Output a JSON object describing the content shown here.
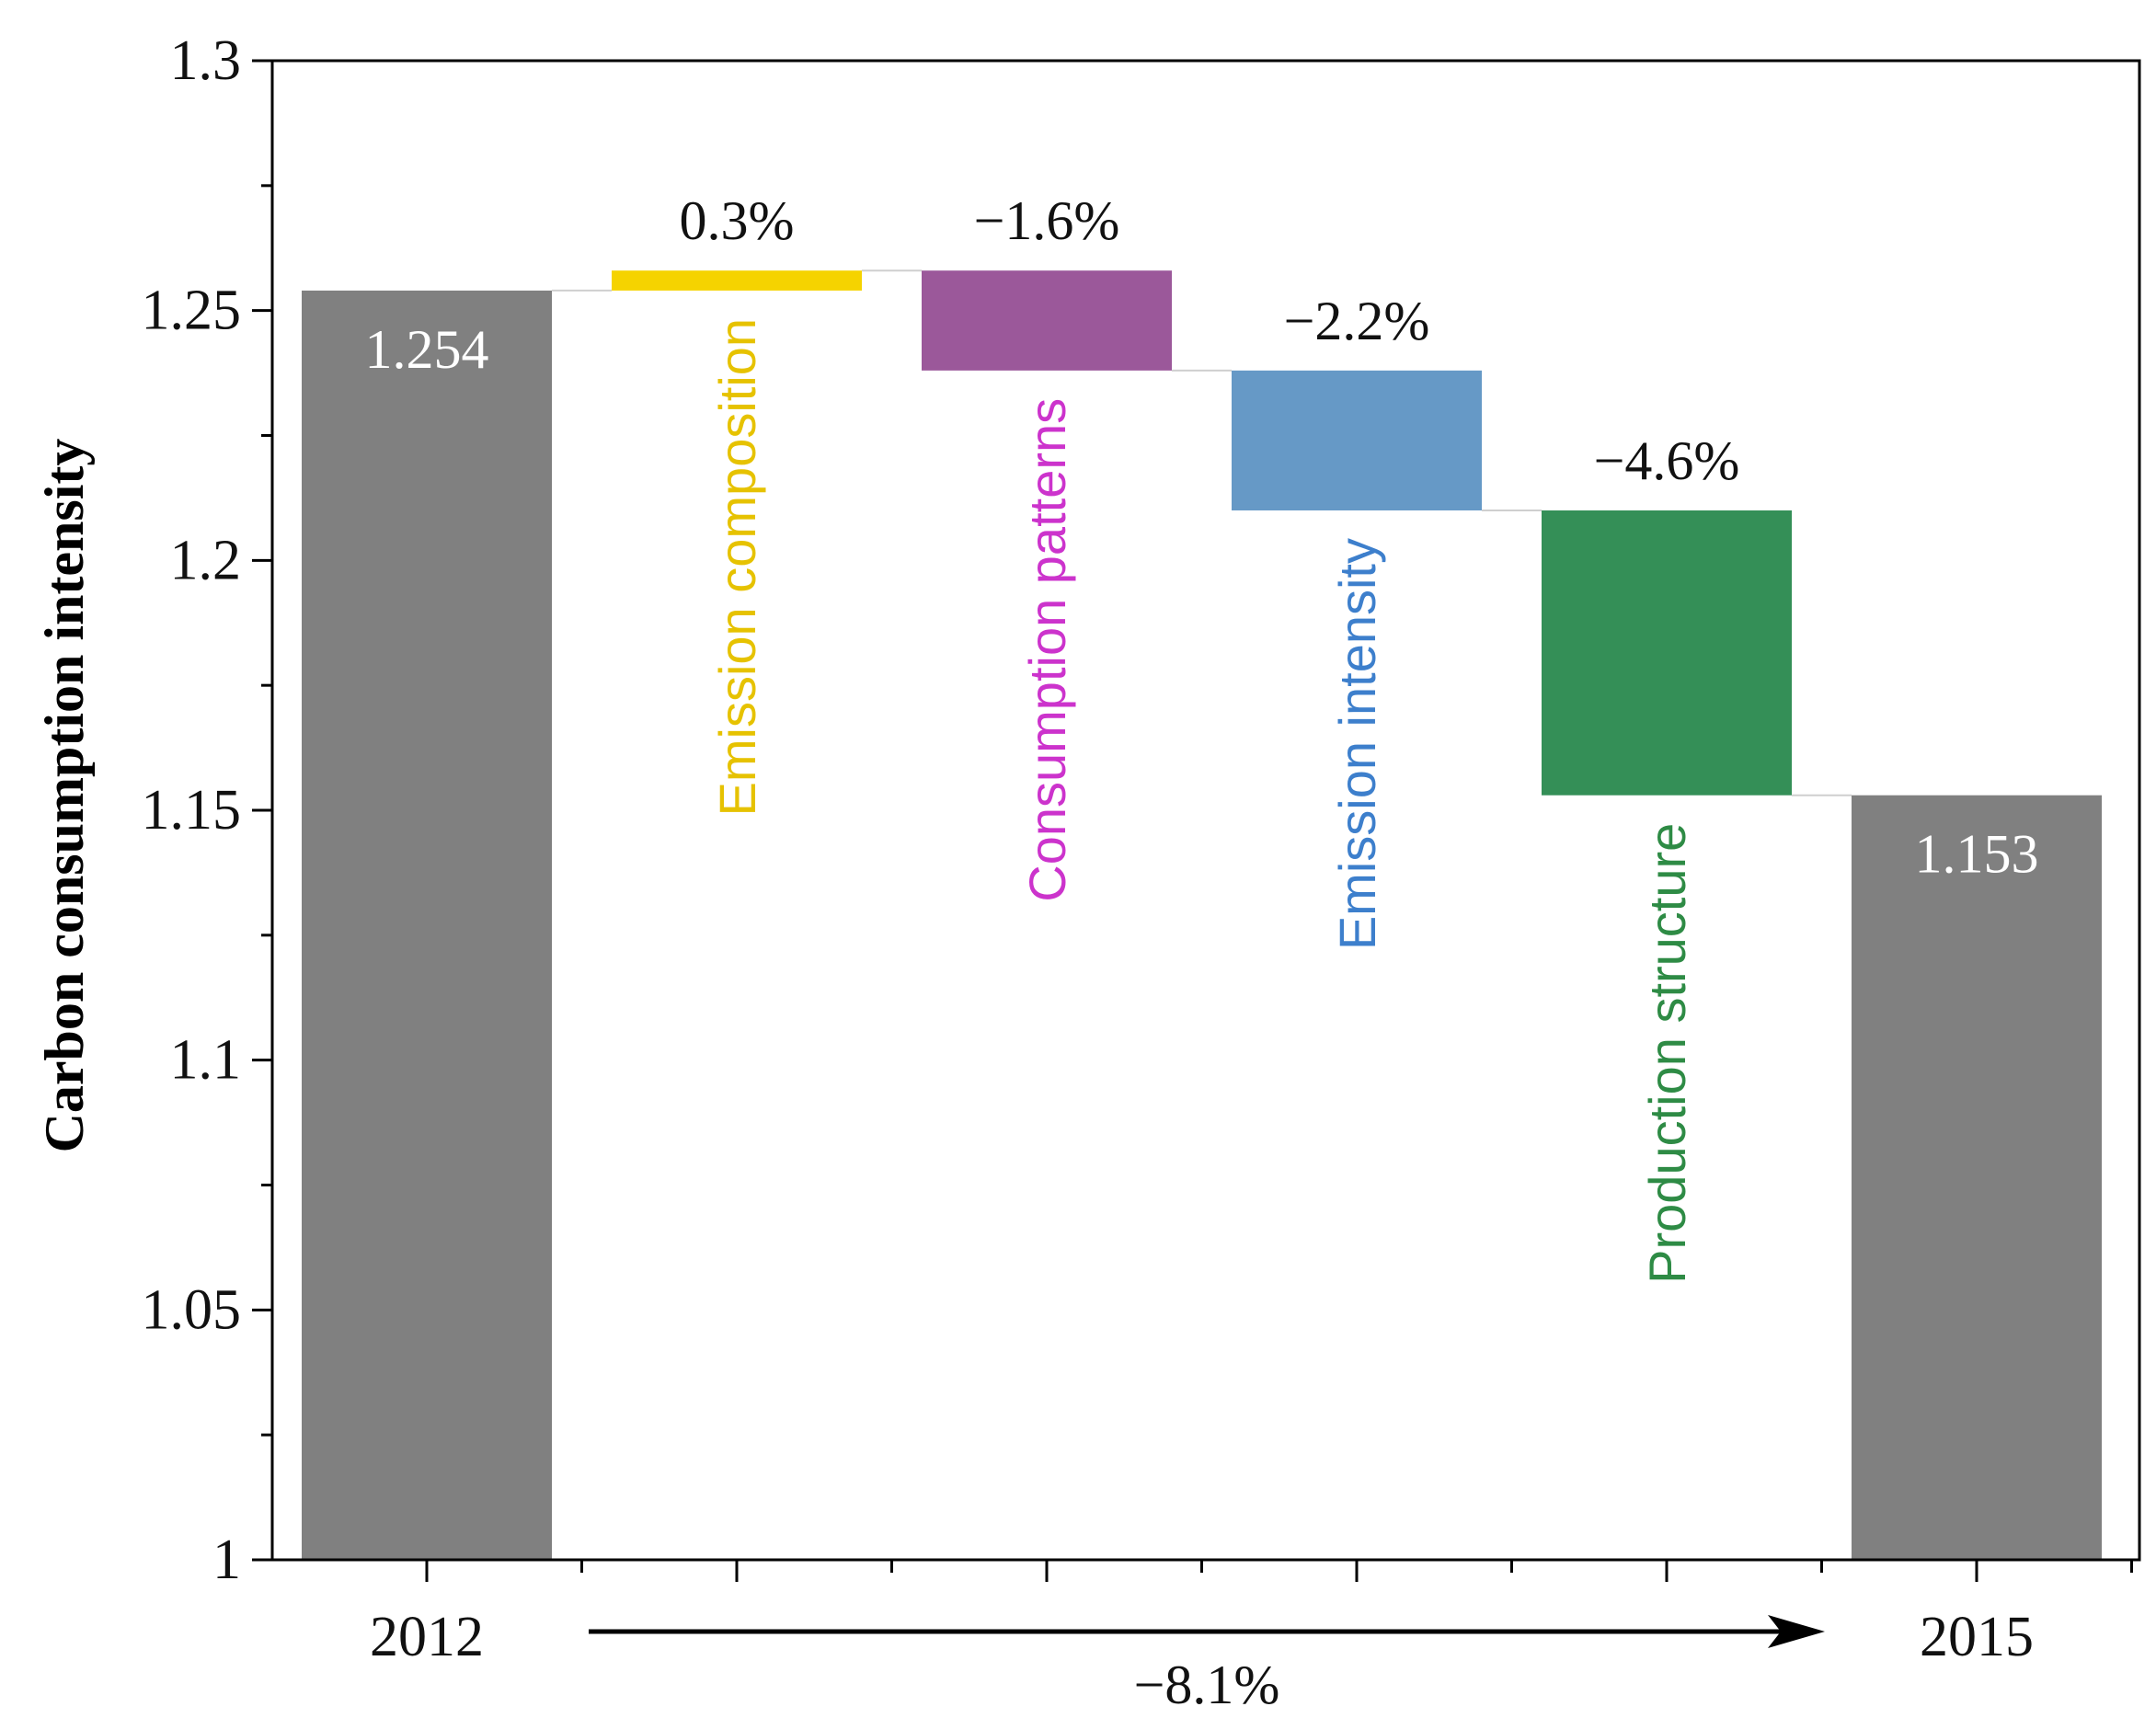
{
  "chart_data": {
    "type": "waterfall",
    "ylabel": "Carbon consumption intensity",
    "ylim": [
      1,
      1.3
    ],
    "yticks": [
      1,
      1.05,
      1.1,
      1.15,
      1.2,
      1.25,
      1.3
    ],
    "ytick_labels": [
      "1",
      "1.05",
      "1.1",
      "1.15",
      "1.2",
      "1.25",
      "1.3"
    ],
    "bars": [
      {
        "kind": "total",
        "label": "2012",
        "value": 1.254,
        "value_label": "1.254",
        "color": "#808080"
      },
      {
        "kind": "delta",
        "category": "Emission composition",
        "start": 1.254,
        "end": 1.258,
        "pct_label": "0.3%",
        "color": "#F5D300",
        "text_color": "#E6C200"
      },
      {
        "kind": "delta",
        "category": "Consumption patterns",
        "start": 1.258,
        "end": 1.238,
        "pct_label": "−1.6%",
        "color": "#9B589A",
        "text_color": "#CC33CC"
      },
      {
        "kind": "delta",
        "category": "Emission intensity",
        "start": 1.238,
        "end": 1.21,
        "pct_label": "−2.2%",
        "color": "#6699C6",
        "text_color": "#3D7FCC"
      },
      {
        "kind": "delta",
        "category": "Production structure",
        "start": 1.21,
        "end": 1.153,
        "pct_label": "−4.6%",
        "color": "#348F57",
        "text_color": "#2E8B45"
      },
      {
        "kind": "total",
        "label": "2015",
        "value": 1.153,
        "value_label": "1.153",
        "color": "#808080"
      }
    ],
    "annotation": {
      "text": "−8.1%",
      "from": "2012",
      "to": "2015"
    }
  }
}
